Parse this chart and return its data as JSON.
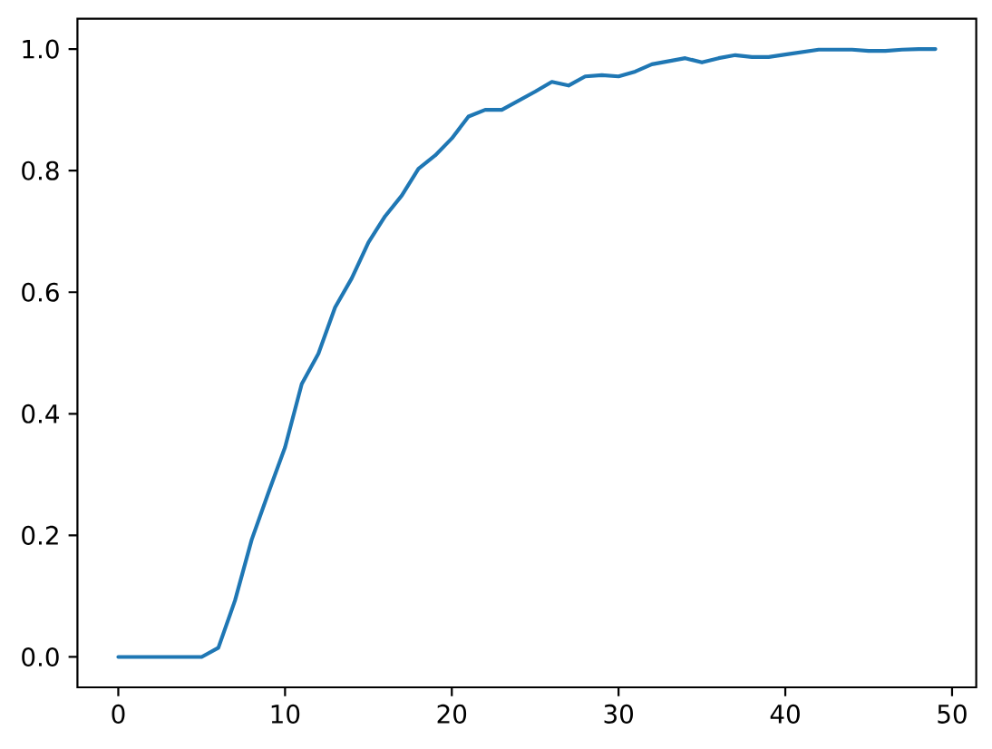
{
  "chart_data": {
    "type": "line",
    "x": [
      0,
      1,
      2,
      3,
      4,
      5,
      6,
      7,
      8,
      9,
      10,
      11,
      12,
      13,
      14,
      15,
      16,
      17,
      18,
      19,
      20,
      21,
      22,
      23,
      24,
      25,
      26,
      27,
      28,
      29,
      30,
      31,
      32,
      33,
      34,
      35,
      36,
      37,
      38,
      39,
      40,
      41,
      42,
      43,
      44,
      45,
      46,
      47,
      48,
      49
    ],
    "values": [
      0,
      0,
      0,
      0,
      0,
      0,
      0.015,
      0.093,
      0.193,
      0.27,
      0.345,
      0.449,
      0.499,
      0.575,
      0.623,
      0.682,
      0.725,
      0.759,
      0.803,
      0.825,
      0.853,
      0.889,
      0.9,
      0.9,
      0.915,
      0.93,
      0.946,
      0.94,
      0.955,
      0.957,
      0.955,
      0.963,
      0.975,
      0.98,
      0.985,
      0.978,
      0.985,
      0.99,
      0.987,
      0.987,
      0.991,
      0.995,
      0.999,
      0.999,
      0.999,
      0.997,
      0.997,
      0.999,
      1.0,
      1.0
    ],
    "color": "#1f77b4",
    "xlim": [
      -2.45,
      51.45
    ],
    "ylim": [
      -0.05,
      1.05
    ],
    "xticks": [
      0,
      10,
      20,
      30,
      40,
      50
    ],
    "yticks": [
      {
        "value": 0,
        "label": "0.0"
      },
      {
        "value": 0.2,
        "label": "0.2"
      },
      {
        "value": 0.4,
        "label": "0.4"
      },
      {
        "value": 0.6,
        "label": "0.6"
      },
      {
        "value": 0.8,
        "label": "0.8"
      },
      {
        "value": 1.0,
        "label": "1.0"
      }
    ]
  }
}
